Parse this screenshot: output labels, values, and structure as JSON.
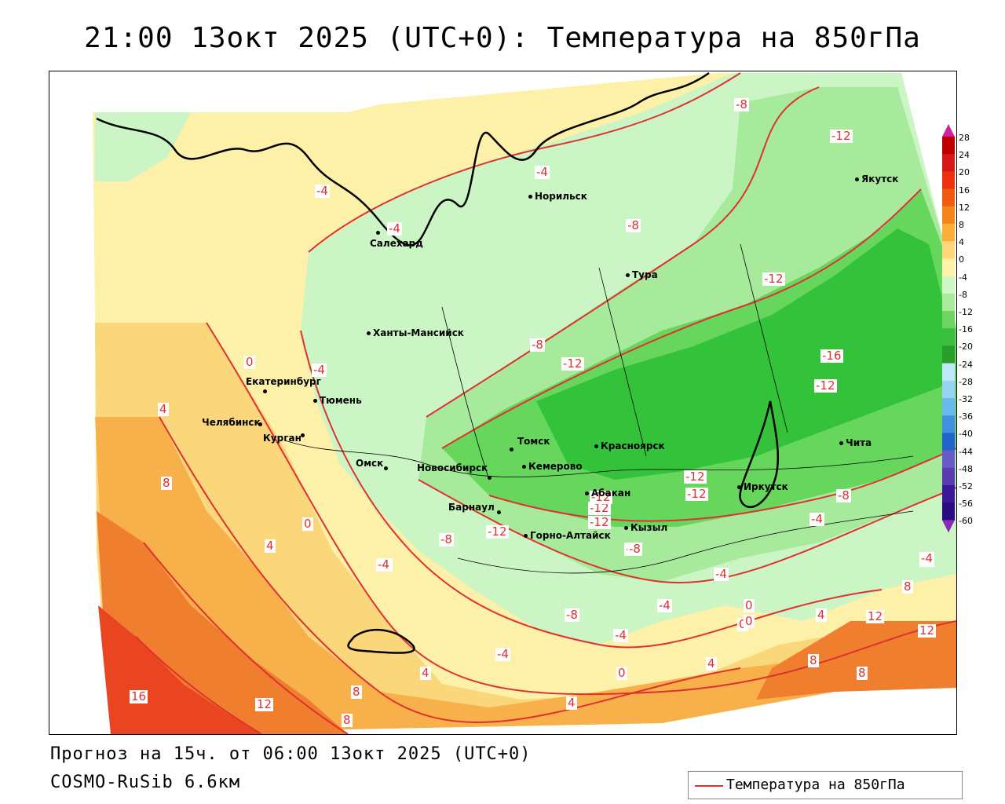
{
  "title": "21:00 13окт 2025 (UTC+0): Температура на 850гПа",
  "footer": {
    "forecast": "Прогноз на 15ч. от 06:00 13окт 2025 (UTC+0)",
    "model": "COSMO-RuSib 6.6км"
  },
  "legend": {
    "label": "Температура на 850гПа",
    "color": "#e03030"
  },
  "colors": {
    "contour": "#e03030",
    "warm_pale": "#fdf0a8",
    "warm_yellow": "#fad77a",
    "warm_orange": "#f7b04a",
    "warm_deep": "#ef7f2e",
    "hot_red": "#e94520",
    "cold_pale": "#ccf5c5",
    "cold_light": "#a8ea9c",
    "cold_mid": "#66d65c",
    "cold_deep": "#33c23a"
  },
  "colorbar": {
    "ticks": [
      "28",
      "24",
      "20",
      "16",
      "12",
      "8",
      "4",
      "0",
      "-4",
      "-8",
      "-12",
      "-16",
      "-20",
      "-24",
      "-28",
      "-32",
      "-36",
      "-40",
      "-44",
      "-48",
      "-52",
      "-56",
      "-60"
    ],
    "colors": [
      "#c00000",
      "#d81818",
      "#ee3010",
      "#f25a10",
      "#f7851a",
      "#fbae3a",
      "#fdd77a",
      "#fff2a8",
      "#d2f7c6",
      "#a8eb9c",
      "#6ed462",
      "#3cbf3c",
      "#2a9e2a",
      "#bfe8f8",
      "#97d6f3",
      "#6ab8ec",
      "#4090e0",
      "#2264cc",
      "#6a5ac8",
      "#5a3ab0",
      "#3c1898",
      "#280c80",
      "#8a2ab8"
    ]
  },
  "cities": [
    {
      "name": "Норильск"
    },
    {
      "name": "Якутск"
    },
    {
      "name": "Салехард"
    },
    {
      "name": "Тура"
    },
    {
      "name": "Ханты-Мансийск"
    },
    {
      "name": "Екатеринбург"
    },
    {
      "name": "Тюмень"
    },
    {
      "name": "Челябинск"
    },
    {
      "name": "Курган"
    },
    {
      "name": "Омск"
    },
    {
      "name": "Томск"
    },
    {
      "name": "Новосибирск"
    },
    {
      "name": "Кемерово"
    },
    {
      "name": "Красноярск"
    },
    {
      "name": "Абакан"
    },
    {
      "name": "Барнаул"
    },
    {
      "name": "Горно-Алтайск"
    },
    {
      "name": "Кызыл"
    },
    {
      "name": "Иркутск"
    },
    {
      "name": "Чита"
    }
  ],
  "contour_labels": [
    "-8",
    "-12",
    "-4",
    "-4",
    "-4",
    "-8",
    "-8",
    "-12",
    "-12",
    "-8",
    "-12",
    "-16",
    "-12",
    "-4",
    "0",
    "4",
    "8",
    "-12",
    "-12",
    "-12",
    "-12",
    "-8",
    "-4",
    "-12",
    "-8",
    "0",
    "4",
    "-4",
    "-4",
    "-4",
    "0",
    "-8",
    "-4",
    "-8",
    "-4",
    "0",
    "0",
    "-4",
    "8",
    "4",
    "12",
    "12",
    "8",
    "8",
    "4",
    "4",
    "-4",
    "0",
    "4",
    "8",
    "8",
    "12",
    "16",
    "-4"
  ]
}
